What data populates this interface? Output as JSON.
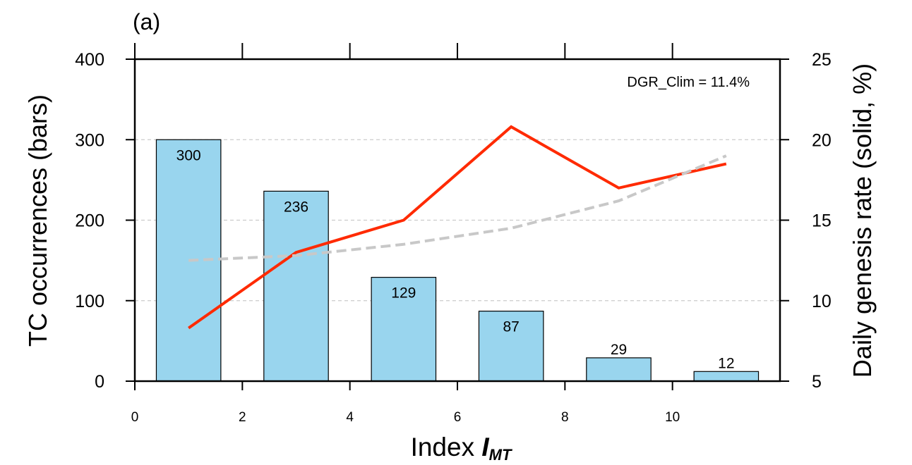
{
  "panel_label": "(a)",
  "annotation": "DGR_Clim = 11.4%",
  "chart_data": {
    "type": "bar",
    "xlabel_main": "Index ",
    "xlabel_symbol": "I",
    "xlabel_subscript": "MT",
    "ylabel_left": "TC occurrences (bars)",
    "ylabel_right": "Daily genesis rate (solid, %)",
    "xlim": [
      0,
      12
    ],
    "ylim_left": [
      0,
      400
    ],
    "ylim_right": [
      5,
      25
    ],
    "x_ticks": [
      0,
      2,
      4,
      6,
      8,
      10
    ],
    "y_ticks_left": [
      0,
      100,
      200,
      300,
      400
    ],
    "y_ticks_right": [
      5,
      10,
      15,
      20,
      25
    ],
    "grid": "horizontal dashed",
    "bars": {
      "x": [
        1,
        3,
        5,
        7,
        9,
        11
      ],
      "values": [
        300,
        236,
        129,
        87,
        29,
        12
      ],
      "color": "#99d5ee"
    },
    "series": [
      {
        "style": "solid",
        "color": "#ff2a00",
        "x": [
          1,
          3,
          5,
          7,
          9,
          11
        ],
        "values": [
          8.3,
          13.0,
          15.0,
          20.8,
          17.0,
          18.5
        ]
      },
      {
        "style": "dashed",
        "color": "#c8c8c8",
        "x": [
          1,
          3,
          5,
          7,
          9,
          11
        ],
        "values": [
          12.5,
          12.8,
          13.5,
          14.5,
          16.2,
          19.0
        ]
      }
    ]
  }
}
